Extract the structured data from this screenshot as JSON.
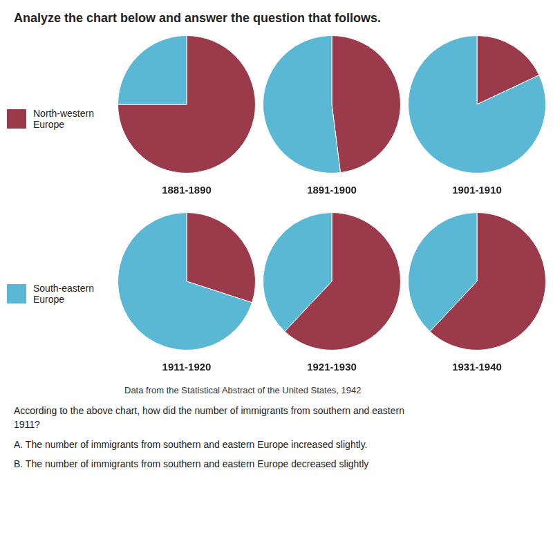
{
  "title": "Analyze the chart below and answer the question that follows.",
  "subtitle": "Data from the Statistical Abstract of the United States, 1942",
  "annotations": [
    "According to the above chart, how did the number of immigrants from southern and eastern\n1911?",
    "A.   The number of immigrants from southern and eastern Europe increased slightly.",
    "B.   The number of immigrants from southern and eastern Europe decreased slightly"
  ],
  "legend": "left",
  "chart_data": [
    {
      "type": "pie",
      "title": "1881-1890",
      "categories": [
        "North-western Europe",
        "South-eastern Europe"
      ],
      "values": [
        75,
        25
      ],
      "colors": [
        "#9B3A4A",
        "#5BB8D4"
      ]
    },
    {
      "type": "pie",
      "title": "1891-1900",
      "categories": [
        "North-western Europe",
        "South-eastern Europe"
      ],
      "values": [
        48,
        52
      ],
      "colors": [
        "#9B3A4A",
        "#5BB8D4"
      ]
    },
    {
      "type": "pie",
      "title": "1901-1910",
      "categories": [
        "North-western Europe",
        "South-eastern Europe"
      ],
      "values": [
        18,
        82
      ],
      "colors": [
        "#9B3A4A",
        "#5BB8D4"
      ]
    },
    {
      "type": "pie",
      "title": "1911-1920",
      "categories": [
        "North-western Europe",
        "South-eastern Europe"
      ],
      "values": [
        30,
        70
      ],
      "colors": [
        "#9B3A4A",
        "#5BB8D4"
      ]
    },
    {
      "type": "pie",
      "title": "1921-1930",
      "categories": [
        "North-western Europe",
        "South-eastern Europe"
      ],
      "values": [
        62,
        38
      ],
      "colors": [
        "#9B3A4A",
        "#5BB8D4"
      ]
    },
    {
      "type": "pie",
      "title": "1931-1940",
      "categories": [
        "North-western Europe",
        "South-eastern Europe"
      ],
      "values": [
        62,
        38
      ],
      "colors": [
        "#9B3A4A",
        "#5BB8D4"
      ]
    }
  ]
}
